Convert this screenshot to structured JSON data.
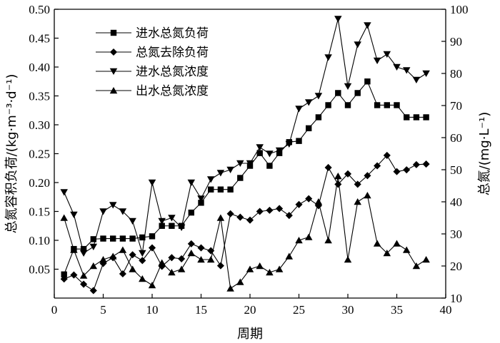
{
  "chart_data": {
    "type": "line",
    "xlabel": "周期",
    "ylabel_left": "总氮容积负荷/(kg·m⁻³·d⁻¹)",
    "ylabel_right": "总氮/(mg·L⁻¹)",
    "xlim": [
      0,
      40
    ],
    "ylim_left": [
      0,
      0.5
    ],
    "ylim_right": [
      10,
      100
    ],
    "x_ticks": [
      0,
      5,
      10,
      15,
      20,
      25,
      30,
      35,
      40
    ],
    "y_left_ticks": [
      0.05,
      0.1,
      0.15,
      0.2,
      0.25,
      0.3,
      0.35,
      0.4,
      0.45,
      0.5
    ],
    "y_left_tick_labels": [
      "0.05",
      "0.10",
      "0.15",
      "0.20",
      "0.25",
      "0.30",
      "0.35",
      "0.40",
      "0.45",
      "0.50"
    ],
    "y_right_ticks": [
      10,
      20,
      30,
      40,
      50,
      60,
      70,
      80,
      90,
      100
    ],
    "x_tick_labels": [
      "0",
      "5",
      "10",
      "15",
      "20",
      "25",
      "30",
      "35",
      "40"
    ],
    "y_right_tick_labels": [
      "10",
      "20",
      "30",
      "40",
      "50",
      "60",
      "70",
      "80",
      "90",
      "100"
    ],
    "legend_position": "top-left",
    "grid": false,
    "x": [
      1,
      2,
      3,
      4,
      5,
      6,
      7,
      8,
      9,
      10,
      11,
      12,
      13,
      14,
      15,
      16,
      17,
      18,
      19,
      20,
      21,
      22,
      23,
      24,
      25,
      26,
      27,
      28,
      29,
      30,
      31,
      32,
      33,
      34,
      35,
      36,
      37,
      38
    ],
    "series": [
      {
        "name": "进水总氮负荷",
        "axis": "left",
        "marker": "square",
        "values": [
          0.041,
          0.085,
          0.085,
          0.102,
          0.103,
          0.103,
          0.103,
          0.103,
          0.105,
          0.107,
          0.125,
          0.125,
          0.125,
          0.148,
          0.165,
          0.188,
          0.188,
          0.188,
          0.208,
          0.229,
          0.251,
          0.229,
          0.251,
          0.27,
          0.272,
          0.294,
          0.313,
          0.334,
          0.355,
          0.334,
          0.355,
          0.375,
          0.334,
          0.334,
          0.334,
          0.313,
          0.313,
          0.313
        ]
      },
      {
        "name": "总氮去除负荷",
        "axis": "left",
        "marker": "diamond",
        "values": [
          0.033,
          0.04,
          0.024,
          0.013,
          0.06,
          0.07,
          0.042,
          0.075,
          0.065,
          0.087,
          0.055,
          0.07,
          0.068,
          0.094,
          0.087,
          0.082,
          0.056,
          0.146,
          0.14,
          0.135,
          0.15,
          0.152,
          0.155,
          0.143,
          0.162,
          0.172,
          0.16,
          0.226,
          0.197,
          0.215,
          0.197,
          0.212,
          0.229,
          0.247,
          0.219,
          0.222,
          0.231,
          0.232
        ]
      },
      {
        "name": "进水总氮浓度",
        "axis": "right",
        "marker": "triangle-down",
        "values": [
          43,
          36,
          24,
          26,
          37,
          39,
          37,
          34,
          24,
          46,
          34,
          35,
          32,
          46,
          41,
          47,
          49,
          50,
          52,
          52,
          57,
          55,
          56,
          58,
          69,
          71,
          73,
          85,
          97,
          76,
          89,
          95,
          84,
          86,
          82,
          81,
          78,
          80
        ]
      },
      {
        "name": "出水总氮浓度",
        "axis": "right",
        "marker": "triangle-up",
        "values": [
          35,
          25,
          17,
          20,
          22,
          23,
          25,
          19,
          16,
          14,
          21,
          18,
          19,
          24,
          22,
          22,
          35,
          13,
          15,
          19,
          20,
          18,
          19,
          23,
          28,
          29,
          40,
          28,
          48,
          22,
          40,
          42,
          27,
          24,
          27,
          25,
          20,
          22
        ]
      }
    ]
  }
}
